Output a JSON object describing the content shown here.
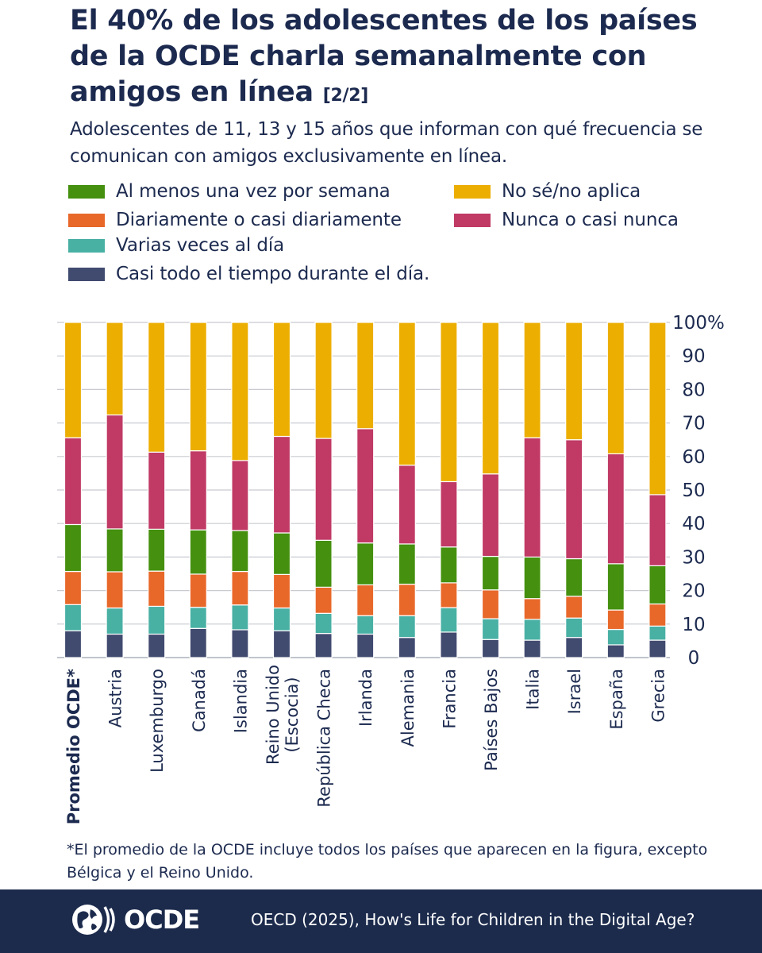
{
  "title": {
    "main": "El 40% de los adolescentes de los países de la OCDE charla semanalmente con amigos en línea",
    "tag": "[2/2]"
  },
  "subtitle": "Adolescentes de 11, 13 y 15 años que informan con qué frecuencia se comunican con amigos exclusivamente en línea.",
  "legend": {
    "weekly": "Al menos una vez por semana",
    "daily": "Diariamente o casi diariamente",
    "several": "Varias veces al día",
    "almost_all": "Casi todo el tiempo durante el día.",
    "dontknow": "No sé/no aplica",
    "never": "Nunca o casi nunca"
  },
  "chart_data": {
    "type": "bar",
    "stacked": true,
    "title": "El 40% de los adolescentes de los países de la OCDE charla semanalmente con amigos en línea",
    "ylabel": "",
    "ylim": [
      0,
      100
    ],
    "yticks": [
      "0",
      "10",
      "20",
      "30",
      "40",
      "50",
      "60",
      "70",
      "80",
      "90",
      "100%"
    ],
    "grid": true,
    "categories": [
      [
        "Promedio OCDE*"
      ],
      [
        "Austria"
      ],
      [
        "Luxemburgo"
      ],
      [
        "Canadá"
      ],
      [
        "Islandia"
      ],
      [
        "Reino Unido",
        "(Escocia)"
      ],
      [
        "República Checa"
      ],
      [
        "Irlanda"
      ],
      [
        "Alemania"
      ],
      [
        "Francia"
      ],
      [
        "Países Bajos"
      ],
      [
        "Italia"
      ],
      [
        "Israel"
      ],
      [
        "España"
      ],
      [
        "Grecia"
      ]
    ],
    "series": [
      {
        "name": "Casi todo el tiempo durante el día.",
        "color": "#414a6f",
        "values": [
          8,
          7,
          7,
          8.7,
          8.3,
          8,
          7.2,
          7,
          6,
          7.6,
          5.4,
          5.2,
          6,
          3.8,
          5.2
        ]
      },
      {
        "name": "Varias veces al día",
        "color": "#49b0a4",
        "values": [
          7.8,
          7.8,
          8.3,
          6.3,
          7.4,
          6.8,
          6,
          5.5,
          6.5,
          7.3,
          6.2,
          6.2,
          5.8,
          4.6,
          4.2
        ]
      },
      {
        "name": "Diariamente o casi diariamente",
        "color": "#e8682a",
        "values": [
          9.9,
          10.8,
          10.5,
          9.9,
          10,
          10,
          7.8,
          9.2,
          9.4,
          7.4,
          8.6,
          6.2,
          6.5,
          5.8,
          6.6
        ]
      },
      {
        "name": "Al menos una vez por semana",
        "color": "#45900f",
        "values": [
          14,
          12.8,
          12.5,
          13.2,
          12.2,
          12.4,
          14,
          12.5,
          12,
          10.7,
          10,
          12.4,
          11.2,
          13.8,
          11.4
        ]
      },
      {
        "name": "Nunca o casi nunca",
        "color": "#c03a65",
        "values": [
          25.9,
          34,
          23,
          23.6,
          20.9,
          28.8,
          30.4,
          34.1,
          23.5,
          19.5,
          24.6,
          35.6,
          35.5,
          32.8,
          21.2
        ]
      },
      {
        "name": "No sé/no aplica",
        "color": "#ecae00",
        "values": [
          34.4,
          27.6,
          38.7,
          38.3,
          41.2,
          34,
          34.6,
          31.7,
          42.6,
          47.5,
          45.2,
          34.4,
          35,
          39.2,
          51.4
        ]
      }
    ]
  },
  "footnote": "*El promedio de la OCDE incluye todos los países que aparecen en la figura, excepto Bélgica y el Reino Unido.",
  "footer": {
    "logo_text": "OCDE",
    "source": "OECD (2025), How's Life for Children in the Digital Age?",
    "background": "#1c2b4c"
  }
}
